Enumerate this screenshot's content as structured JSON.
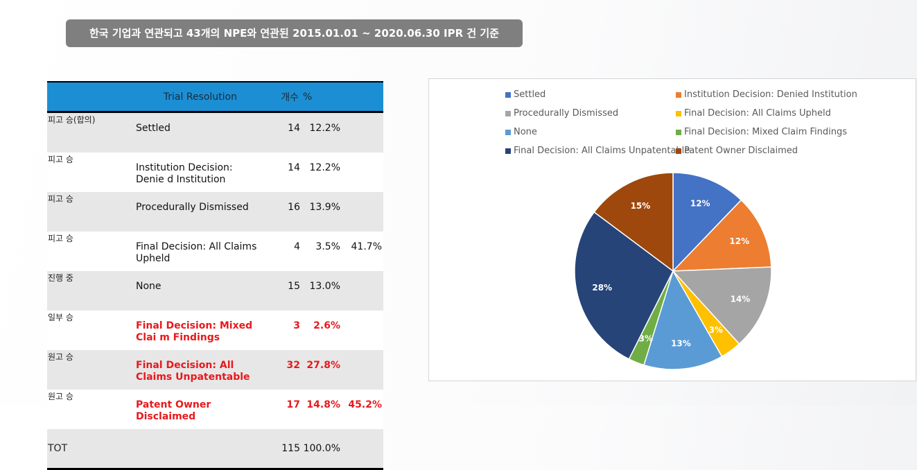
{
  "header": {
    "title": "한국 기업과 연관되고 43개의 NPE와 연관된 2015.01.01 ~ 2020.06.30 IPR 건 기준"
  },
  "table": {
    "col_headers": {
      "resolution": "Trial Resolution",
      "count": "개수",
      "percent": "%"
    },
    "rows": [
      {
        "category": "피고 승(합의)",
        "resolution": "Settled",
        "count": "14",
        "percent": "12.2%",
        "group_pct": "",
        "highlight": false,
        "shade": true
      },
      {
        "category": "피고 승",
        "resolution": "Institution Decision: Denie d Institution",
        "count": "14",
        "percent": "12.2%",
        "group_pct": "",
        "highlight": false,
        "shade": false
      },
      {
        "category": "피고 승",
        "resolution": "Procedurally Dismissed",
        "count": "16",
        "percent": "13.9%",
        "group_pct": "",
        "highlight": false,
        "shade": true
      },
      {
        "category": "피고 승",
        "resolution": "Final Decision: All Claims Upheld",
        "count": "4",
        "percent": "3.5%",
        "group_pct": "41.7%",
        "highlight": false,
        "shade": false
      },
      {
        "category": "진행 중",
        "resolution": "None",
        "count": "15",
        "percent": "13.0%",
        "group_pct": "",
        "highlight": false,
        "shade": true
      },
      {
        "category": "일부 승",
        "resolution": "Final Decision: Mixed Clai m Findings",
        "count": "3",
        "percent": "2.6%",
        "group_pct": "",
        "highlight": true,
        "shade": false
      },
      {
        "category": "원고 승",
        "resolution": "Final Decision: All Claims Unpatentable",
        "count": "32",
        "percent": "27.8%",
        "group_pct": "",
        "highlight": true,
        "shade": true
      },
      {
        "category": "원고 승",
        "resolution": "Patent Owner Disclaimed",
        "count": "17",
        "percent": "14.8%",
        "group_pct": "45.2%",
        "highlight": true,
        "shade": false
      }
    ],
    "total": {
      "label": "TOT",
      "count": "115",
      "percent": "100.0%"
    }
  },
  "chart_data": {
    "type": "pie",
    "title": "",
    "legend_position": "top",
    "categories": [
      "Settled",
      "Institution Decision: Denied Institution",
      "Procedurally Dismissed",
      "Final Decision: All Claims Upheld",
      "None",
      "Final Decision: Mixed Claim Findings",
      "Final Decision: All Claims Unpatentable",
      "Patent Owner Disclaimed"
    ],
    "values": [
      14,
      14,
      16,
      4,
      15,
      3,
      32,
      17
    ],
    "labels": [
      "12%",
      "12%",
      "14%",
      "3%",
      "13%",
      "3%",
      "28%",
      "15%"
    ],
    "colors": [
      "#4472c4",
      "#ed7d31",
      "#a5a5a5",
      "#ffc000",
      "#5b9bd5",
      "#70ad47",
      "#264478",
      "#9e480e"
    ]
  }
}
